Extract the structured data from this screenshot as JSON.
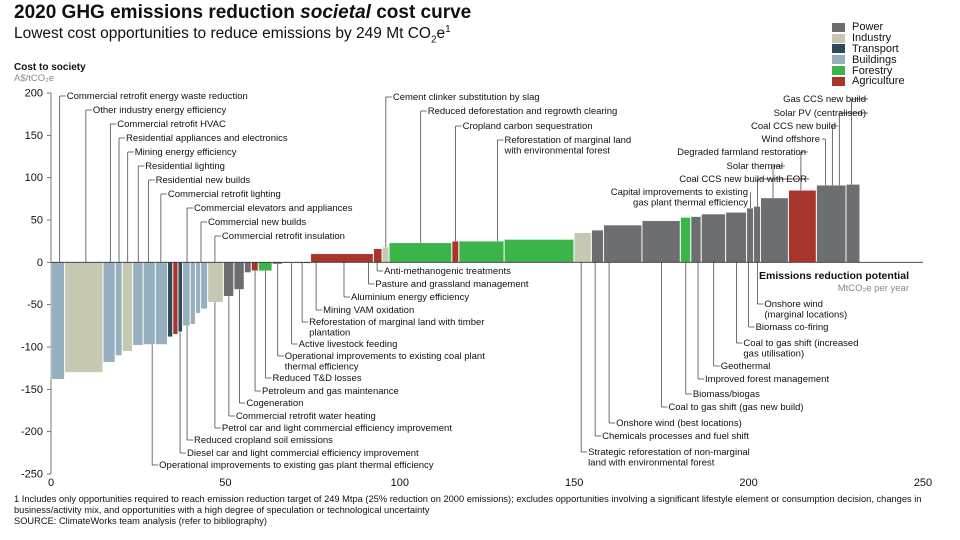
{
  "title": {
    "pre": "2020 GHG emissions reduction ",
    "emph": "societal",
    "post": " cost curve"
  },
  "subtitle": {
    "pre": "Lowest cost opportunities to reduce emissions by 249 Mt CO",
    "sub": "2",
    "post": "e",
    "sup": "1"
  },
  "yaxis_title": "Cost to society",
  "yaxis_unit": "A$/tCO₂e",
  "legend": [
    {
      "name": "Power",
      "color": "#6d6e71"
    },
    {
      "name": "Industry",
      "color": "#c7c8b2"
    },
    {
      "name": "Transport",
      "color": "#2c4a5a"
    },
    {
      "name": "Buildings",
      "color": "#97b0bf"
    },
    {
      "name": "Forestry",
      "color": "#3bb54a"
    },
    {
      "name": "Agriculture",
      "color": "#a8342c"
    }
  ],
  "footnote": "1 Includes only opportunities required to reach emission reduction target of 249 Mtpa (25% reduction on 2000 emissions); excludes opportunities involving a significant lifestyle element or consumption decision, changes in business/activity mix, and opportunities with a high degree of speculation or technological uncertainty",
  "source": "SOURCE: ClimateWorks team analysis (refer to bibliography)",
  "chart_data": {
    "type": "bar",
    "subtype": "marginal-abatement-cost-curve",
    "xlim": [
      0,
      250
    ],
    "ylim": [
      -250,
      200
    ],
    "x_ticks": [
      "0",
      "50",
      "100",
      "150",
      "200",
      "250"
    ],
    "y_ticks": [
      "200",
      "150",
      "100",
      "50",
      "0",
      "-50",
      "-100",
      "-150",
      "-200",
      "-250"
    ],
    "x_axis_title": "Emissions reduction potential",
    "x_axis_unit": "MtCO₂e per year",
    "bars": [
      {
        "start": 0,
        "width": 4,
        "cost": -138,
        "sector": "Buildings"
      },
      {
        "start": 4,
        "width": 11,
        "cost": -130,
        "sector": "Industry"
      },
      {
        "start": 15,
        "width": 3.5,
        "cost": -118,
        "sector": "Buildings"
      },
      {
        "start": 18.5,
        "width": 2,
        "cost": -110,
        "sector": "Buildings"
      },
      {
        "start": 20.5,
        "width": 3,
        "cost": -105,
        "sector": "Industry"
      },
      {
        "start": 23.5,
        "width": 3,
        "cost": -98,
        "sector": "Buildings"
      },
      {
        "start": 26.5,
        "width": 3.5,
        "cost": -97,
        "sector": "Buildings"
      },
      {
        "start": 30,
        "width": 3.5,
        "cost": -97,
        "sector": "Buildings"
      },
      {
        "start": 33.5,
        "width": 1.5,
        "cost": -88,
        "sector": "Transport"
      },
      {
        "start": 35,
        "width": 1.5,
        "cost": -85,
        "sector": "Agriculture"
      },
      {
        "start": 36.5,
        "width": 1.3,
        "cost": -82,
        "sector": "Transport"
      },
      {
        "start": 37.8,
        "width": 2.2,
        "cost": -75,
        "sector": "Buildings"
      },
      {
        "start": 40,
        "width": 1.5,
        "cost": -73,
        "sector": "Buildings"
      },
      {
        "start": 41.5,
        "width": 1.5,
        "cost": -60,
        "sector": "Buildings"
      },
      {
        "start": 43,
        "width": 2,
        "cost": -55,
        "sector": "Buildings"
      },
      {
        "start": 45,
        "width": 4.5,
        "cost": -47,
        "sector": "Industry"
      },
      {
        "start": 49.5,
        "width": 3,
        "cost": -40,
        "sector": "Power"
      },
      {
        "start": 52.5,
        "width": 3,
        "cost": -32,
        "sector": "Power"
      },
      {
        "start": 55.5,
        "width": 2,
        "cost": -12,
        "sector": "Power"
      },
      {
        "start": 57.5,
        "width": 2,
        "cost": -10,
        "sector": "Agriculture"
      },
      {
        "start": 59.5,
        "width": 4,
        "cost": -10,
        "sector": "Forestry"
      },
      {
        "start": 63.5,
        "width": 3,
        "cost": -2,
        "sector": "Power"
      },
      {
        "start": 66.5,
        "width": 4,
        "cost": -1,
        "sector": "Industry"
      },
      {
        "start": 70.5,
        "width": 2,
        "cost": -1,
        "sector": "Forestry"
      },
      {
        "start": 72.5,
        "width": 2,
        "cost": -1,
        "sector": "Agriculture"
      },
      {
        "start": 74.5,
        "width": 18,
        "cost": 10,
        "sector": "Agriculture"
      },
      {
        "start": 92.5,
        "width": 2.5,
        "cost": 16,
        "sector": "Agriculture"
      },
      {
        "start": 95,
        "width": 2,
        "cost": 18,
        "sector": "Industry"
      },
      {
        "start": 97,
        "width": 18,
        "cost": 23,
        "sector": "Forestry"
      },
      {
        "start": 115,
        "width": 2,
        "cost": 25,
        "sector": "Agriculture"
      },
      {
        "start": 117,
        "width": 13,
        "cost": 25,
        "sector": "Forestry"
      },
      {
        "start": 130,
        "width": 20,
        "cost": 27,
        "sector": "Forestry"
      },
      {
        "start": 150,
        "width": 5,
        "cost": 35,
        "sector": "Industry"
      },
      {
        "start": 155,
        "width": 3.5,
        "cost": 38,
        "sector": "Power"
      },
      {
        "start": 158.5,
        "width": 11,
        "cost": 44,
        "sector": "Power"
      },
      {
        "start": 169.5,
        "width": 11,
        "cost": 49,
        "sector": "Power"
      },
      {
        "start": 180.5,
        "width": 3,
        "cost": 53,
        "sector": "Forestry"
      },
      {
        "start": 183.5,
        "width": 3,
        "cost": 54,
        "sector": "Power"
      },
      {
        "start": 186.5,
        "width": 7,
        "cost": 57,
        "sector": "Power"
      },
      {
        "start": 193.5,
        "width": 6,
        "cost": 59,
        "sector": "Power"
      },
      {
        "start": 199.5,
        "width": 2,
        "cost": 64,
        "sector": "Power"
      },
      {
        "start": 201.5,
        "width": 2,
        "cost": 66,
        "sector": "Power"
      },
      {
        "start": 203.5,
        "width": 8,
        "cost": 76,
        "sector": "Power"
      },
      {
        "start": 211.5,
        "width": 8,
        "cost": 85,
        "sector": "Agriculture"
      },
      {
        "start": 219.5,
        "width": 8.5,
        "cost": 91,
        "sector": "Power"
      },
      {
        "start": 228,
        "width": 4,
        "cost": 92,
        "sector": "Power"
      }
    ],
    "labels_above": [
      {
        "text": "Commercial retrofit energy waste reduction",
        "x": 2.5
      },
      {
        "text": "Other industry energy efficiency",
        "x": 10
      },
      {
        "text": "Commercial retrofit HVAC",
        "x": 17
      },
      {
        "text": "Residential appliances and electronics",
        "x": 19.5
      },
      {
        "text": "Mining energy efficiency",
        "x": 22
      },
      {
        "text": "Residential lighting",
        "x": 25
      },
      {
        "text": "Residential new builds",
        "x": 28
      },
      {
        "text": "Commercial retrofit lighting",
        "x": 31.5
      },
      {
        "text": "Commercial elevators and appliances",
        "x": 39
      },
      {
        "text": "Commercial new builds",
        "x": 43
      },
      {
        "text": "Commercial retrofit insulation",
        "x": 47
      },
      {
        "text": "Cement clinker substitution by slag",
        "x": 96
      },
      {
        "text": "Reduced deforestation and regrowth clearing",
        "x": 106
      },
      {
        "text": "Cropland carbon sequestration",
        "x": 116
      },
      {
        "text": "Reforestation of marginal land",
        "x": 128,
        "line2": "with environmental forest"
      }
    ],
    "labels_below": [
      {
        "text": "Anti-methanogenic treatments",
        "x": 93.5
      },
      {
        "text": "Pasture and grassland management",
        "x": 91
      },
      {
        "text": "Aluminium energy efficiency",
        "x": 84
      },
      {
        "text": "Mining VAM oxidation",
        "x": 76
      },
      {
        "text": "Reforestation of marginal land with timber",
        "x": 72,
        "line2": "plantation"
      },
      {
        "text": "Active livestock feeding",
        "x": 69
      },
      {
        "text": "Operational improvements to existing coal plant",
        "x": 65,
        "line2": "thermal efficiency"
      },
      {
        "text": "Reduced T&D losses",
        "x": 61.5
      },
      {
        "text": "Petroleum and gas maintenance",
        "x": 58.5
      },
      {
        "text": "Cogeneration",
        "x": 54
      },
      {
        "text": "Commercial retrofit water heating",
        "x": 51
      },
      {
        "text": "Petrol car and light commercial efficiency improvement",
        "x": 47
      },
      {
        "text": "Reduced cropland soil emissions",
        "x": 39
      },
      {
        "text": "Diesel car and light commercial efficiency improvement",
        "x": 37
      },
      {
        "text": "Operational improvements to existing gas plant thermal efficiency",
        "x": 29
      },
      {
        "text": "Strategic reforestation of non-marginal",
        "x": 152,
        "line2": "land with environmental forest"
      },
      {
        "text": "Chemicals processes and fuel shift",
        "x": 156
      },
      {
        "text": "Onshore wind (best locations)",
        "x": 160
      },
      {
        "text": "Coal to gas shift (gas new build)",
        "x": 175
      },
      {
        "text": "Biomass/biogas",
        "x": 182
      },
      {
        "text": "Improved forest management",
        "x": 185.5
      },
      {
        "text": "Geothermal",
        "x": 190
      },
      {
        "text": "Coal to gas shift (increased",
        "x": 196.5,
        "line2": "gas utilisation)"
      },
      {
        "text": "Biomass co-firing",
        "x": 200
      },
      {
        "text": "Onshore wind",
        "x": 202.5,
        "line2": "(marginal locations)"
      }
    ],
    "labels_right": [
      {
        "text": "Gas CCS new build",
        "x": 229.5
      },
      {
        "text": "Solar PV (centralised)",
        "x": 226
      },
      {
        "text": "Coal CCS new build",
        "x": 224
      },
      {
        "text": "Wind offshore",
        "x": 222
      },
      {
        "text": "Degraded farmland restoration",
        "x": 215
      },
      {
        "text": "Solar thermal",
        "x": 207
      },
      {
        "text": "Coal CCS new build with EOR",
        "x": 202.5
      },
      {
        "text": "Capital improvements to existing",
        "x": 200.5,
        "line2": "gas plant thermal efficiency"
      }
    ]
  }
}
